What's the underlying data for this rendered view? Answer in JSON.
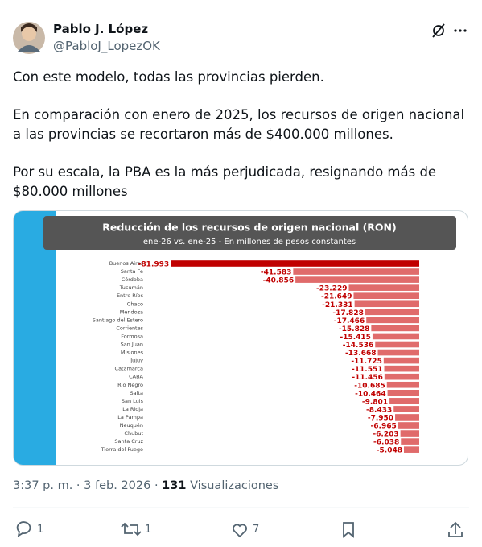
{
  "tweet": {
    "author": {
      "name": "Pablo J. López",
      "handle": "@PabloJ_LopezOK"
    },
    "paragraphs": [
      "Con este modelo, todas las provincias pierden.",
      "En comparación con enero de 2025, los recursos de origen nacional a las provincias se recortaron más de $400.000 millones.",
      "Por su escala, la PBA es la más perjudicada, resignando más de $80.000 millones"
    ],
    "time": "3:37 p. m.",
    "date": "3 feb. 2026",
    "views": 131,
    "views_label": "Visualizaciones",
    "replies": 1,
    "retweets": 1,
    "likes": 7
  },
  "chart_data": {
    "type": "bar",
    "orientation": "horizontal",
    "title": "Reducción de los recursos de origen nacional (RON)",
    "subtitle": "ene-26 vs. ene-25 - En millones de pesos constantes",
    "categories": [
      "Buenos Aires",
      "Santa Fe",
      "Córdoba",
      "Tucumán",
      "Entre Ríos",
      "Chaco",
      "Mendoza",
      "Santiago del Estero",
      "Corrientes",
      "Formosa",
      "San Juan",
      "Misiones",
      "Jujuy",
      "Catamarca",
      "CABA",
      "Río Negro",
      "Salta",
      "San Luis",
      "La Rioja",
      "La Pampa",
      "Neuquén",
      "Chubut",
      "Santa Cruz",
      "Tierra del Fuego"
    ],
    "values": [
      -81993,
      -41583,
      -40856,
      -23229,
      -21649,
      -21331,
      -17828,
      -17466,
      -15828,
      -15415,
      -14536,
      -13668,
      -11725,
      -11551,
      -11456,
      -10685,
      -10464,
      -9801,
      -8433,
      -7950,
      -6965,
      -6203,
      -6038,
      -5048
    ],
    "value_labels": [
      "-81.993",
      "-41.583",
      "-40.856",
      "-23.229",
      "-21.649",
      "-21.331",
      "-17.828",
      "-17.466",
      "-15.828",
      "-15.415",
      "-14.536",
      "-13.668",
      "-11.725",
      "-11.551",
      "-11.456",
      "-10.685",
      "-10.464",
      "-9.801",
      "-8.433",
      "-7.950",
      "-6.965",
      "-6.203",
      "-6.038",
      "-5.048"
    ],
    "xlim": [
      -90000,
      0
    ],
    "color": "#e06b6b",
    "highlight_color": "#c00000",
    "label_color": "#c00000"
  }
}
